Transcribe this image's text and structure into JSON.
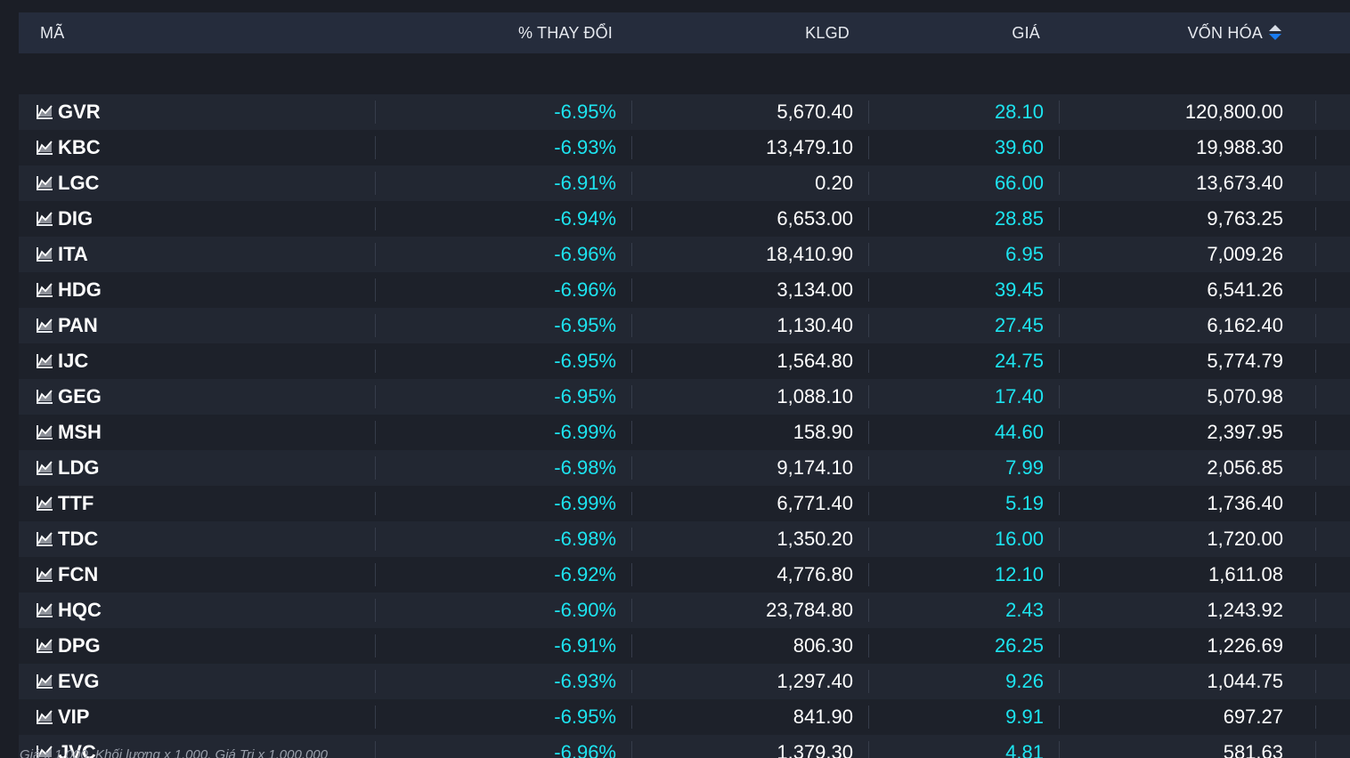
{
  "table": {
    "headers": {
      "ma": "MÃ",
      "pct_change": "% THAY ĐỔI",
      "klgd": "KLGD",
      "gia": "GIÁ",
      "von_hoa": "VỐN HÓA"
    },
    "sort_column": "VỐN HÓA",
    "rows": [
      {
        "ma": "GVR",
        "pct": "-6.95%",
        "klgd": "5,670.40",
        "gia": "28.10",
        "von_hoa": "120,800.00"
      },
      {
        "ma": "KBC",
        "pct": "-6.93%",
        "klgd": "13,479.10",
        "gia": "39.60",
        "von_hoa": "19,988.30"
      },
      {
        "ma": "LGC",
        "pct": "-6.91%",
        "klgd": "0.20",
        "gia": "66.00",
        "von_hoa": "13,673.40"
      },
      {
        "ma": "DIG",
        "pct": "-6.94%",
        "klgd": "6,653.00",
        "gia": "28.85",
        "von_hoa": "9,763.25"
      },
      {
        "ma": "ITA",
        "pct": "-6.96%",
        "klgd": "18,410.90",
        "gia": "6.95",
        "von_hoa": "7,009.26"
      },
      {
        "ma": "HDG",
        "pct": "-6.96%",
        "klgd": "3,134.00",
        "gia": "39.45",
        "von_hoa": "6,541.26"
      },
      {
        "ma": "PAN",
        "pct": "-6.95%",
        "klgd": "1,130.40",
        "gia": "27.45",
        "von_hoa": "6,162.40"
      },
      {
        "ma": "IJC",
        "pct": "-6.95%",
        "klgd": "1,564.80",
        "gia": "24.75",
        "von_hoa": "5,774.79"
      },
      {
        "ma": "GEG",
        "pct": "-6.95%",
        "klgd": "1,088.10",
        "gia": "17.40",
        "von_hoa": "5,070.98"
      },
      {
        "ma": "MSH",
        "pct": "-6.99%",
        "klgd": "158.90",
        "gia": "44.60",
        "von_hoa": "2,397.95"
      },
      {
        "ma": "LDG",
        "pct": "-6.98%",
        "klgd": "9,174.10",
        "gia": "7.99",
        "von_hoa": "2,056.85"
      },
      {
        "ma": "TTF",
        "pct": "-6.99%",
        "klgd": "6,771.40",
        "gia": "5.19",
        "von_hoa": "1,736.40"
      },
      {
        "ma": "TDC",
        "pct": "-6.98%",
        "klgd": "1,350.20",
        "gia": "16.00",
        "von_hoa": "1,720.00"
      },
      {
        "ma": "FCN",
        "pct": "-6.92%",
        "klgd": "4,776.80",
        "gia": "12.10",
        "von_hoa": "1,611.08"
      },
      {
        "ma": "HQC",
        "pct": "-6.90%",
        "klgd": "23,784.80",
        "gia": "2.43",
        "von_hoa": "1,243.92"
      },
      {
        "ma": "DPG",
        "pct": "-6.91%",
        "klgd": "806.30",
        "gia": "26.25",
        "von_hoa": "1,226.69"
      },
      {
        "ma": "EVG",
        "pct": "-6.93%",
        "klgd": "1,297.40",
        "gia": "9.26",
        "von_hoa": "1,044.75"
      },
      {
        "ma": "VIP",
        "pct": "-6.95%",
        "klgd": "841.90",
        "gia": "9.91",
        "von_hoa": "697.27"
      },
      {
        "ma": "JVC",
        "pct": "-6.96%",
        "klgd": "1,379.30",
        "gia": "4.81",
        "von_hoa": "581.63"
      }
    ]
  },
  "footnote": "Giá x 1,000. Khối lượng x 1,000. Giá Trị x 1,000,000",
  "colors": {
    "background": "#1b1e26",
    "header_bg": "#252c3c",
    "row_even": "#222732",
    "row_odd": "#1d212a",
    "accent_cyan": "#1de4f0",
    "text": "#ffffff"
  },
  "icons": {
    "row_icon": "area-chart-icon",
    "sort_icon": "sort-updown-icon"
  }
}
